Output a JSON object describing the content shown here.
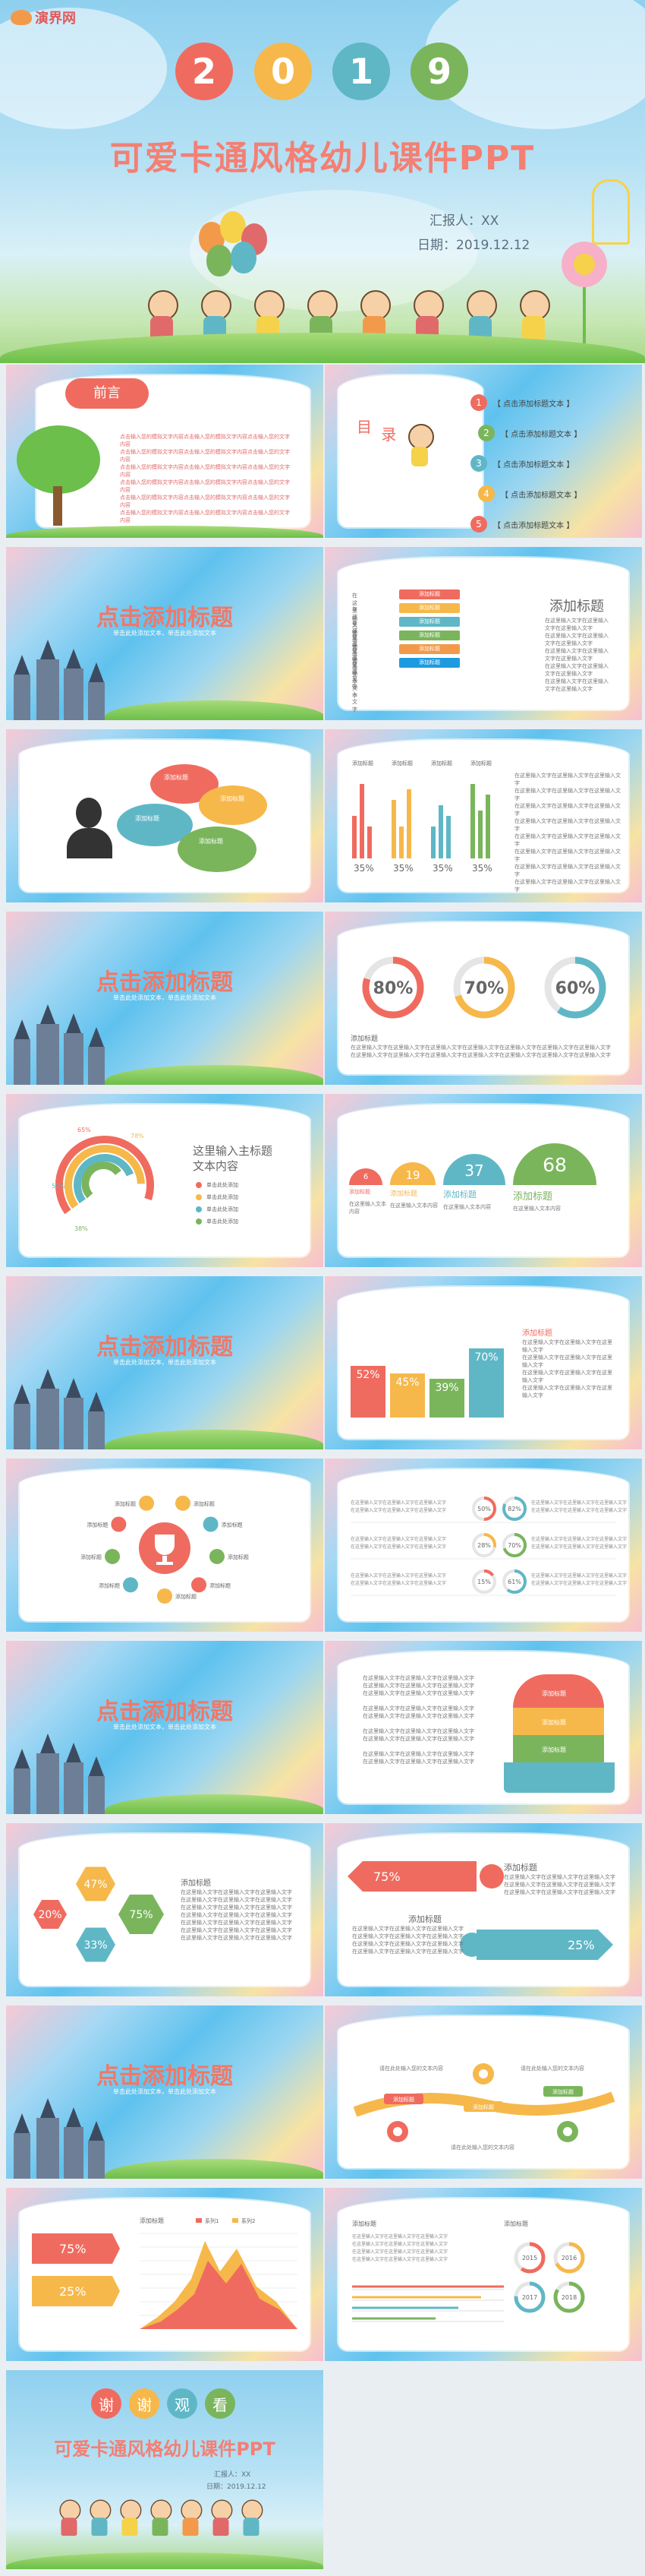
{
  "brand": {
    "logo_text": "演界网"
  },
  "cover": {
    "year_digits": [
      "2",
      "0",
      "1",
      "9"
    ],
    "year_colors": [
      "#f06b5f",
      "#f6b84a",
      "#5fb7c6",
      "#7ab55c"
    ],
    "title": "可爱卡通风格幼儿课件PPT",
    "reporter": "汇报人：XX",
    "date": "日期：2019.12.12"
  },
  "preface": {
    "badge": "前言",
    "lines": [
      "点击输入您的模拟文字内容点击输入您的模拟文字内容点击输入您的文字内容",
      "点击输入您的模拟文字内容点击输入您的模拟文字内容点击输入您的文字内容",
      "点击输入您的模拟文字内容点击输入您的模拟文字内容点击输入您的文字内容",
      "点击输入您的模拟文字内容点击输入您的模拟文字内容点击输入您的文字内容",
      "点击输入您的模拟文字内容点击输入您的模拟文字内容点击输入您的文字内容",
      "点击输入您的模拟文字内容点击输入您的模拟文字内容点击输入您的文字内容"
    ]
  },
  "toc": {
    "label_a": "目",
    "label_b": "录",
    "items": [
      {
        "num": "1",
        "text": "【 点击添加标题文本 】",
        "color": "#f06b5f"
      },
      {
        "num": "2",
        "text": "【 点击添加标题文本 】",
        "color": "#7ab55c"
      },
      {
        "num": "3",
        "text": "【 点击添加标题文本 】",
        "color": "#5fb7c6"
      },
      {
        "num": "4",
        "text": "【 点击添加标题文本 】",
        "color": "#f6b84a"
      },
      {
        "num": "5",
        "text": "【 点击添加标题文本 】",
        "color": "#f06b5f"
      }
    ]
  },
  "section": {
    "title": "点击添加标题",
    "subtitle": "单击此处添加文本，单击此处添加文本"
  },
  "slide_list": {
    "heading": "添加标题",
    "row_label": "在这里输入文字",
    "pill_label": "添加标题",
    "pill_colors": [
      "#f06b5f",
      "#f6b84a",
      "#5fb7c6",
      "#7ab55c",
      "#f39a4a",
      "#1e9be0"
    ],
    "body": "在这里输入文字在这里输入文字在这里输入文字"
  },
  "bubbles": {
    "label": "添加标题",
    "body": "在这里输入文字"
  },
  "bars4": {
    "label": "添加标题",
    "percent": "35%",
    "colors": [
      "#f06b5f",
      "#f6b84a",
      "#5fb7c6",
      "#7ab55c"
    ]
  },
  "donuts3": {
    "items": [
      {
        "value": "80%",
        "color": "#f06b5f",
        "pct": 0.8
      },
      {
        "value": "70%",
        "color": "#f6b84a",
        "pct": 0.7
      },
      {
        "value": "60%",
        "color": "#5fb7c6",
        "pct": 0.6
      }
    ],
    "label": "添加标题",
    "body": "在这里输入文字在这里输入文字在这里输入文字在这里输入文字在这里输入文字在这里输入文字在这里输入文字"
  },
  "arcs": {
    "title": "这里输入主标题",
    "subtitle": "文本内容",
    "pcts": [
      "65%",
      "78%",
      "55%",
      "38%"
    ],
    "legend": [
      "单击此处添加",
      "单击此处添加",
      "单击此处添加",
      "单击此处添加"
    ],
    "colors": [
      "#f06b5f",
      "#f6b84a",
      "#5fb7c6",
      "#7ab55c"
    ]
  },
  "steps": {
    "values": [
      "6",
      "19",
      "37",
      "68"
    ],
    "colors": [
      "#f06b5f",
      "#f6b84a",
      "#5fb7c6",
      "#7ab55c"
    ],
    "label": "添加标题",
    "body": "在这里输入文本内容"
  },
  "bar_pct": {
    "values": [
      "52%",
      "45%",
      "39%",
      "70%"
    ],
    "colors": [
      "#f06b5f",
      "#f6b84a",
      "#7ab55c",
      "#5fb7c6"
    ],
    "label": "添加标题",
    "body": "在这里输入文字在这里输入文字在这里输入文字"
  },
  "trophy": {
    "label": "添加标题"
  },
  "rings_list": {
    "values": [
      "50%",
      "82%",
      "28%",
      "70%",
      "15%",
      "61%"
    ],
    "colors": [
      "#f06b5f",
      "#5fb7c6",
      "#f6b84a",
      "#7ab55c",
      "#f06b5f",
      "#5fb7c6"
    ],
    "body": "在这里输入文字在这里输入文字在这里输入文字"
  },
  "head_profile": {
    "label": "添加标题",
    "colors": [
      "#f06b5f",
      "#f6b84a",
      "#7ab55c"
    ],
    "body": "在这里输入文字在这里输入文字在这里输入文字"
  },
  "hexes": {
    "values": [
      "47%",
      "20%",
      "75%",
      "33%"
    ],
    "colors": [
      "#f6b84a",
      "#f06b5f",
      "#7ab55c",
      "#5fb7c6"
    ],
    "label": "添加标题",
    "body": "在这里输入文字在这里输入文字在这里输入文字"
  },
  "arrows": {
    "left_value": "75%",
    "right_value": "25%",
    "label": "添加标题",
    "body": "在这里输入文字在这里输入文字在这里输入文字"
  },
  "flow": {
    "body": "请在此处输入您的文本内容",
    "tags": [
      "添加标题",
      "添加标题",
      "添加标题"
    ]
  },
  "area_chart": {
    "label": "添加标题",
    "top_value": "75%",
    "bottom_value": "25%",
    "legend": [
      "系列1",
      "系列2"
    ]
  },
  "lines_rings": {
    "label": "添加标题",
    "years": [
      "2015",
      "2016",
      "2017",
      "2018"
    ],
    "colors": [
      "#f06b5f",
      "#f6b84a",
      "#5fb7c6",
      "#7ab55c"
    ]
  },
  "ending": {
    "chars": [
      "谢",
      "谢",
      "观",
      "看"
    ],
    "colors": [
      "#f06b5f",
      "#f6b84a",
      "#5fb7c6",
      "#7ab55c"
    ],
    "title": "可爱卡通风格幼儿课件PPT",
    "reporter": "汇报人：XX",
    "date": "日期：2019.12.12"
  }
}
